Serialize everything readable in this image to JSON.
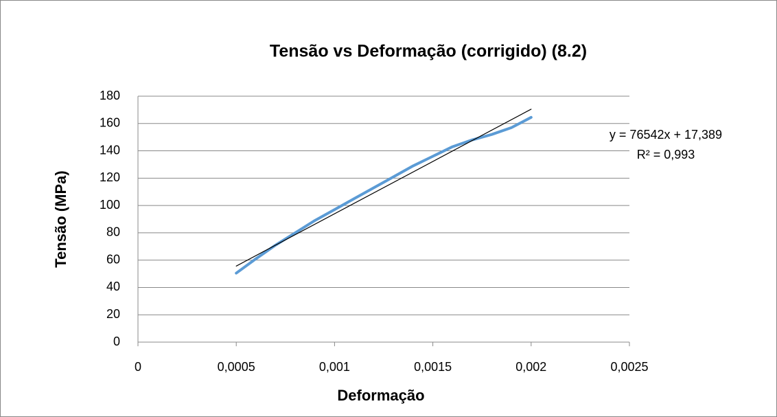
{
  "chart_data": {
    "type": "scatter-line",
    "title": "Tensão vs Deformação (corrigido) (8.2)",
    "x_label": "Deformação",
    "y_label": "Tensão (MPa)",
    "xlim": [
      0,
      0.0025
    ],
    "xticks": [
      0,
      {
        "value": 0.0005,
        "label": "0,0005"
      },
      {
        "value": 0.001,
        "label": "0,001"
      },
      {
        "value": 0.0015,
        "label": "0,0015"
      },
      {
        "value": 0.002,
        "label": "0,002"
      },
      {
        "value": 0.0025,
        "label": "0,0025"
      }
    ],
    "ylim": [
      0,
      180
    ],
    "yticks": [
      0,
      20,
      40,
      60,
      80,
      100,
      120,
      140,
      160,
      180
    ],
    "grid": true,
    "series": [
      {
        "color": "#5b9bd5",
        "x": [
          0.0005,
          0.0006,
          0.0007,
          0.0008,
          0.0009,
          0.001,
          0.0011,
          0.0012,
          0.0013,
          0.0014,
          0.0015,
          0.0016,
          0.0017,
          0.0018,
          0.0019,
          0.002
        ],
        "values": [
          50.5,
          61,
          71,
          80,
          89,
          97,
          105,
          113,
          121,
          129,
          136,
          143,
          148,
          152,
          157,
          164.5
        ]
      }
    ],
    "trendline": {
      "color": "#000000",
      "x": [
        0.0005,
        0.002
      ],
      "values": [
        55.66,
        170.47
      ],
      "equation": "y = 76542x + 17,389",
      "r2": "R² = 0,993"
    }
  }
}
